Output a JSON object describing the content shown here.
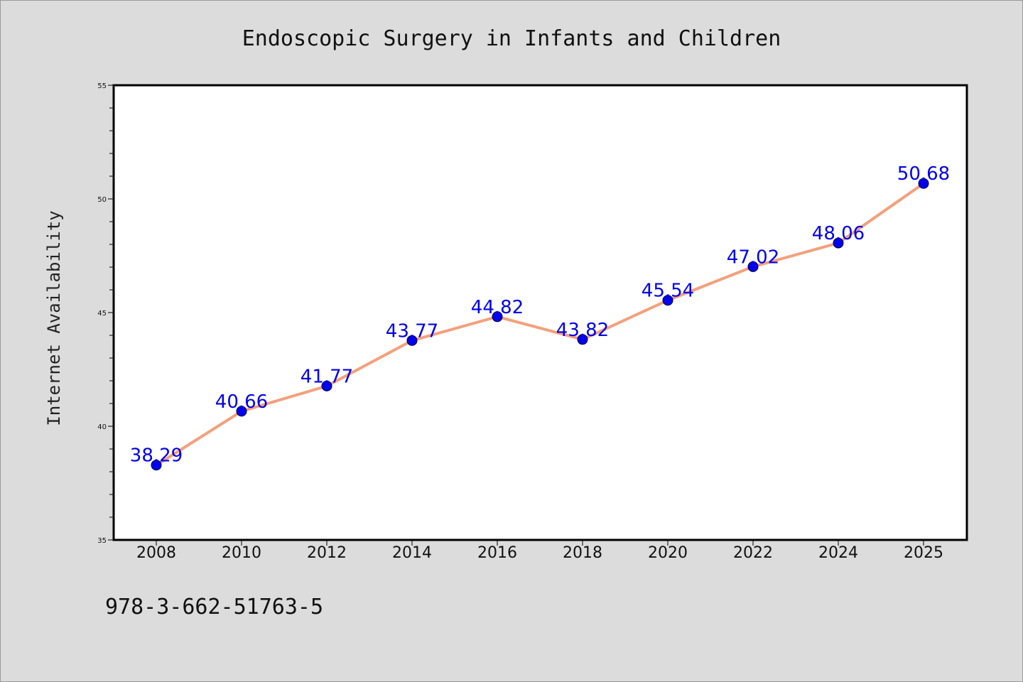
{
  "chart_data": {
    "type": "line",
    "title": "Endoscopic Surgery in Infants and Children",
    "xlabel": "",
    "ylabel": "Internet Availability",
    "categories": [
      "2008",
      "2010",
      "2012",
      "2014",
      "2016",
      "2018",
      "2020",
      "2022",
      "2024",
      "2025"
    ],
    "series": [
      {
        "values": [
          38.29,
          40.66,
          41.77,
          43.77,
          44.82,
          43.82,
          45.54,
          47.02,
          48.06,
          50.68
        ],
        "labels": [
          "38.29",
          "40.66",
          "41.77",
          "43.77",
          "44.82",
          "43.82",
          "45.54",
          "47.02",
          "48.06",
          "50.68"
        ]
      }
    ],
    "ylim": [
      35,
      55
    ],
    "yticks": [
      "35",
      "40",
      "45",
      "50",
      "55"
    ],
    "grid": false,
    "line_color": "#f4a07c",
    "marker_color": "#0000ee"
  },
  "footer": {
    "isbn": "978-3-662-51763-5"
  }
}
